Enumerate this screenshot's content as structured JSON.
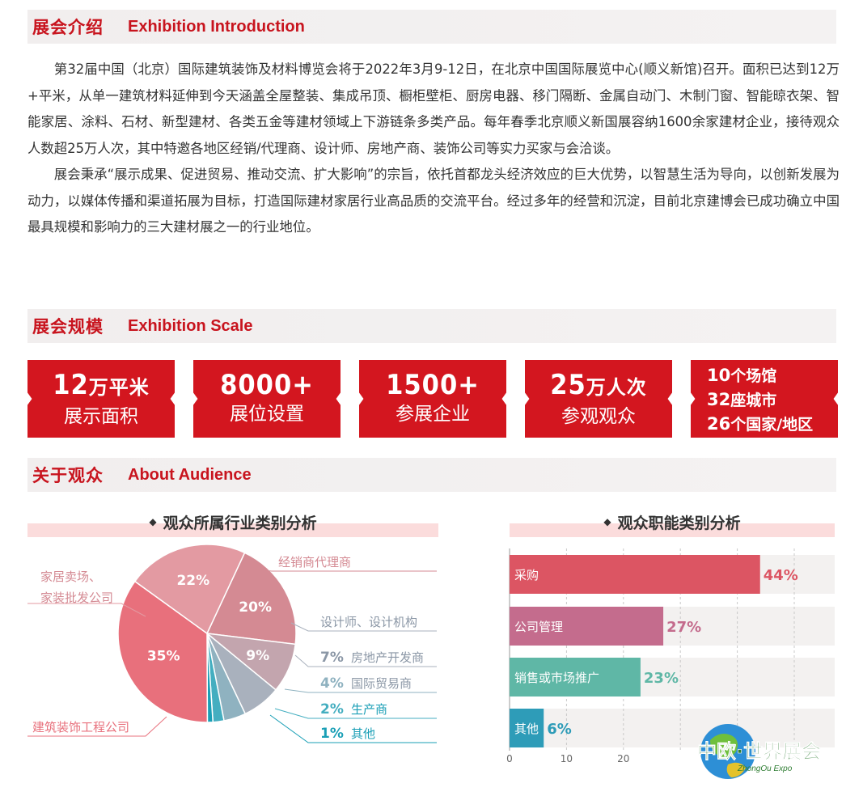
{
  "sections": {
    "intro": {
      "zh": "展会介绍",
      "en": "Exhibition Introduction"
    },
    "scale": {
      "zh": "展会规模",
      "en": "Exhibition Scale"
    },
    "audience": {
      "zh": "关于观众",
      "en": "About Audience"
    }
  },
  "intro_paragraphs": [
    "第32届中国（北京）国际建筑装饰及材料博览会将于2022年3月9-12日，在北京中国国际展览中心(顺义新馆)召开。面积已达到12万+平米，从单一建筑材料延伸到今天涵盖全屋整装、集成吊顶、橱柜壁柜、厨房电器、移门隔断、金属自动门、木制门窗、智能晾衣架、智能家居、涂料、石材、新型建材、各类五金等建材领域上下游链条多类产品。每年春季北京顺义新国展容纳1600余家建材企业，接待观众人数超25万人次，其中特邀各地区经销/代理商、设计师、房地产商、装饰公司等实力买家与会洽谈。",
    "展会秉承“展示成果、促进贸易、推动交流、扩大影响”的宗旨，依托首都龙头经济效应的巨大优势，以智慧生活为导向，以创新发展为动力，以媒体传播和渠道拓展为目标，打造国际建材家居行业高品质的交流平台。经过多年的经营和沉淀，目前北京建博会已成功确立中国最具规模和影响力的三大建材展之一的行业地位。"
  ],
  "stats": [
    {
      "num": "12",
      "unit": "万平米",
      "label": "展示面积"
    },
    {
      "num": "8000+",
      "unit": "",
      "label": "展位设置"
    },
    {
      "num": "1500+",
      "unit": "",
      "label": "参展企业"
    },
    {
      "num": "25",
      "unit": "万人次",
      "label": "参观观众"
    }
  ],
  "stats_multi": [
    {
      "num": "10",
      "text": "个场馆"
    },
    {
      "num": "32",
      "text": "座城市"
    },
    {
      "num": "26",
      "text": "个国家/地区"
    }
  ],
  "industry_title": "观众所属行业类别分析",
  "function_title": "观众职能类别分析",
  "diamond": "◆",
  "chart_data": [
    {
      "type": "pie",
      "title": "观众所属行业类别分析",
      "slices": [
        {
          "label": "经销商代理商",
          "value": 20,
          "display": "20%",
          "color": "#d48a93"
        },
        {
          "label": "设计师、设计机构",
          "value": 9,
          "display": "9%",
          "color": "#c3a5ae"
        },
        {
          "label": "房地产开发商",
          "value": 7,
          "display": "7%",
          "color": "#a9b1bd"
        },
        {
          "label": "国际贸易商",
          "value": 4,
          "display": "4%",
          "color": "#8fb2c0"
        },
        {
          "label": "生产商",
          "value": 2,
          "display": "2%",
          "color": "#44aec0"
        },
        {
          "label": "其他",
          "value": 1,
          "display": "1%",
          "color": "#1a9fb6"
        },
        {
          "label": "建筑装饰工程公司",
          "value": 35,
          "display": "35%",
          "color": "#e8707c"
        },
        {
          "label": "家居卖场、家装批发公司",
          "value": 22,
          "display": "22%",
          "color": "#e39aa2"
        }
      ],
      "left_labels": [
        {
          "lines": [
            "家居卖场、",
            "家装批发公司"
          ]
        },
        {
          "lines": [
            "建筑装饰工程公司"
          ]
        }
      ],
      "right_labels": [
        {
          "pct": "",
          "text": "经销商代理商"
        },
        {
          "pct": "",
          "text": "设计师、设计机构"
        },
        {
          "pct": "7%",
          "text": "房地产开发商"
        },
        {
          "pct": "4%",
          "text": "国际贸易商"
        },
        {
          "pct": "2%",
          "text": "生产商"
        },
        {
          "pct": "1%",
          "text": "其他"
        }
      ]
    },
    {
      "type": "bar",
      "orientation": "horizontal",
      "title": "观众职能类别分析",
      "categories": [
        "采购",
        "公司管理",
        "销售或市场推广",
        "其他"
      ],
      "values": [
        44,
        27,
        23,
        6
      ],
      "value_labels": [
        "44%",
        "27%",
        "23%",
        "6%"
      ],
      "colors": [
        "#dc5563",
        "#c46c8d",
        "#5fb7a6",
        "#2e9cb8"
      ],
      "xticks": [
        "0",
        "10",
        "20"
      ],
      "xlim": [
        0,
        50
      ]
    }
  ],
  "logo": {
    "text": "中欧·世界展会",
    "sub": "ZhongOu Expo"
  }
}
